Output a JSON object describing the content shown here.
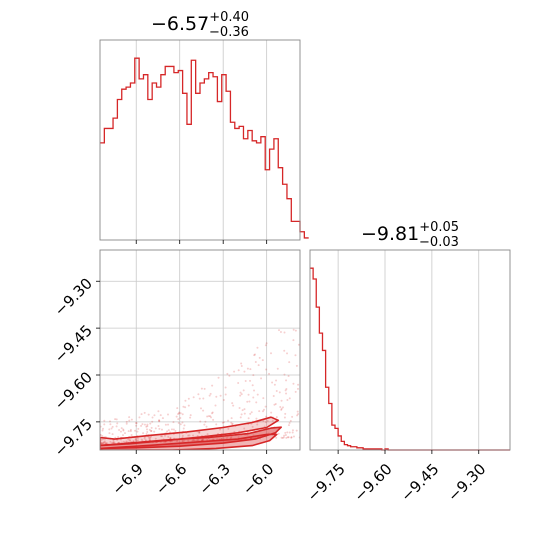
{
  "chart_data": {
    "type": "corner",
    "color": "#d62728",
    "grid": true,
    "parameters": [
      {
        "title": {
          "median": "−6.57",
          "plus": "+0.40",
          "minus": "−0.36"
        },
        "range": [
          -7.15,
          -5.77
        ],
        "ticks": [
          -6.9,
          -6.6,
          -6.3,
          -6.0
        ],
        "tick_labels": [
          "−6.9",
          "−6.6",
          "−6.3",
          "−6.0"
        ]
      },
      {
        "title": {
          "median": "−9.81",
          "plus": "+0.05",
          "minus": "−0.03"
        },
        "range": [
          -9.84,
          -9.2
        ],
        "ticks": [
          -9.75,
          -9.6,
          -9.45,
          -9.3
        ],
        "tick_labels": [
          "−9.75",
          "−9.60",
          "−9.45",
          "−9.30"
        ]
      }
    ],
    "hist1": {
      "bin_width": 0.03,
      "bin_start": -7.15,
      "counts": [
        47,
        54,
        54,
        59,
        68,
        73,
        74,
        76,
        88,
        78,
        80,
        68,
        76,
        74,
        80,
        84,
        84,
        81,
        82,
        71,
        56,
        87,
        71,
        76,
        78,
        81,
        79,
        67,
        80,
        72,
        57,
        54,
        55,
        49,
        53,
        48,
        47,
        50,
        34,
        44,
        49,
        35,
        27,
        20,
        9,
        9,
        4,
        1
      ]
    },
    "hist2": {
      "bin_width": 0.01,
      "bin_start": -9.84,
      "counts": [
        168,
        158,
        132,
        108,
        92,
        58,
        43,
        23,
        20,
        13,
        8,
        5,
        4,
        3,
        3,
        2,
        2,
        1,
        1,
        1,
        1,
        1,
        1,
        0,
        1,
        0,
        0,
        0,
        0,
        0,
        0,
        0,
        0,
        0,
        0,
        0,
        0,
        0,
        0,
        0,
        0,
        0,
        0,
        0,
        0,
        0,
        0,
        0,
        0,
        0,
        0,
        0,
        0,
        0,
        0,
        0,
        0,
        0,
        0,
        0,
        0,
        0,
        0,
        0,
        0
      ]
    },
    "contour_levels": [
      [
        [
          -7.15,
          -9.84
        ],
        [
          -6.95,
          -9.84
        ],
        [
          -6.65,
          -9.84
        ],
        [
          -6.35,
          -9.835
        ],
        [
          -6.1,
          -9.826
        ],
        [
          -5.98,
          -9.81
        ],
        [
          -5.93,
          -9.79
        ],
        [
          -6.0,
          -9.79
        ],
        [
          -6.2,
          -9.805
        ],
        [
          -6.5,
          -9.815
        ],
        [
          -6.8,
          -9.825
        ],
        [
          -7.05,
          -9.832
        ],
        [
          -7.15,
          -9.835
        ]
      ],
      [
        [
          -7.15,
          -9.835
        ],
        [
          -6.9,
          -9.833
        ],
        [
          -6.6,
          -9.828
        ],
        [
          -6.3,
          -9.818
        ],
        [
          -6.08,
          -9.805
        ],
        [
          -5.94,
          -9.785
        ],
        [
          -5.9,
          -9.767
        ],
        [
          -5.97,
          -9.77
        ],
        [
          -6.12,
          -9.787
        ],
        [
          -6.4,
          -9.8
        ],
        [
          -6.7,
          -9.808
        ],
        [
          -7.0,
          -9.82
        ],
        [
          -7.15,
          -9.825
        ]
      ],
      [
        [
          -7.15,
          -9.826
        ],
        [
          -6.95,
          -9.82
        ],
        [
          -6.7,
          -9.81
        ],
        [
          -6.45,
          -9.798
        ],
        [
          -6.2,
          -9.785
        ],
        [
          -6.0,
          -9.768
        ],
        [
          -5.92,
          -9.745
        ],
        [
          -5.97,
          -9.735
        ],
        [
          -6.1,
          -9.752
        ],
        [
          -6.3,
          -9.768
        ],
        [
          -6.55,
          -9.782
        ],
        [
          -6.8,
          -9.793
        ],
        [
          -7.05,
          -9.805
        ],
        [
          -7.15,
          -9.8
        ]
      ]
    ],
    "scatter_seed": 7
  }
}
